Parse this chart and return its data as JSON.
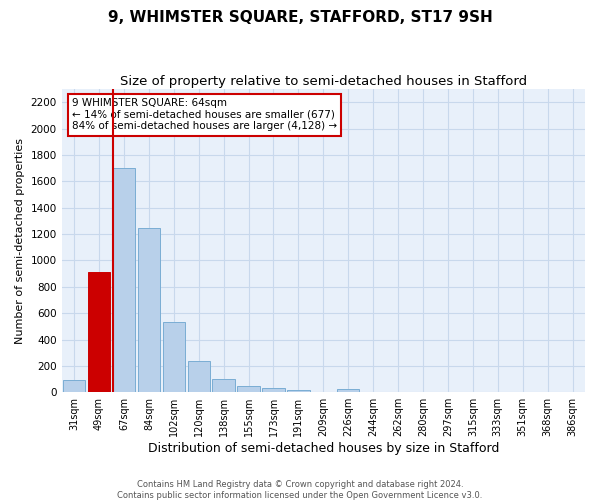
{
  "title": "9, WHIMSTER SQUARE, STAFFORD, ST17 9SH",
  "subtitle": "Size of property relative to semi-detached houses in Stafford",
  "xlabel": "Distribution of semi-detached houses by size in Stafford",
  "ylabel": "Number of semi-detached properties",
  "footer_line1": "Contains HM Land Registry data © Crown copyright and database right 2024.",
  "footer_line2": "Contains public sector information licensed under the Open Government Licence v3.0.",
  "annotation_title": "9 WHIMSTER SQUARE: 64sqm",
  "annotation_line1": "← 14% of semi-detached houses are smaller (677)",
  "annotation_line2": "84% of semi-detached houses are larger (4,128) →",
  "categories": [
    "31sqm",
    "49sqm",
    "67sqm",
    "84sqm",
    "102sqm",
    "120sqm",
    "138sqm",
    "155sqm",
    "173sqm",
    "191sqm",
    "209sqm",
    "226sqm",
    "244sqm",
    "262sqm",
    "280sqm",
    "297sqm",
    "315sqm",
    "333sqm",
    "351sqm",
    "368sqm",
    "386sqm"
  ],
  "values": [
    90,
    910,
    1700,
    1250,
    530,
    240,
    100,
    45,
    30,
    20,
    0,
    25,
    0,
    0,
    0,
    0,
    0,
    0,
    0,
    0,
    0
  ],
  "bar_color": "#b8d0ea",
  "bar_edge_color": "#7aadd4",
  "highlight_bar_index": 1,
  "highlight_color": "#cc0000",
  "highlight_edge_color": "#cc0000",
  "redline_bar_index": 2,
  "annotation_box_color": "#ffffff",
  "annotation_box_edge": "#cc0000",
  "ylim": [
    0,
    2300
  ],
  "yticks": [
    0,
    200,
    400,
    600,
    800,
    1000,
    1200,
    1400,
    1600,
    1800,
    2000,
    2200
  ],
  "grid_color": "#c8d8ec",
  "bg_color": "#e8f0fa",
  "title_fontsize": 11,
  "subtitle_fontsize": 9.5,
  "xlabel_fontsize": 9,
  "ylabel_fontsize": 8,
  "annotation_fontsize": 7.5
}
